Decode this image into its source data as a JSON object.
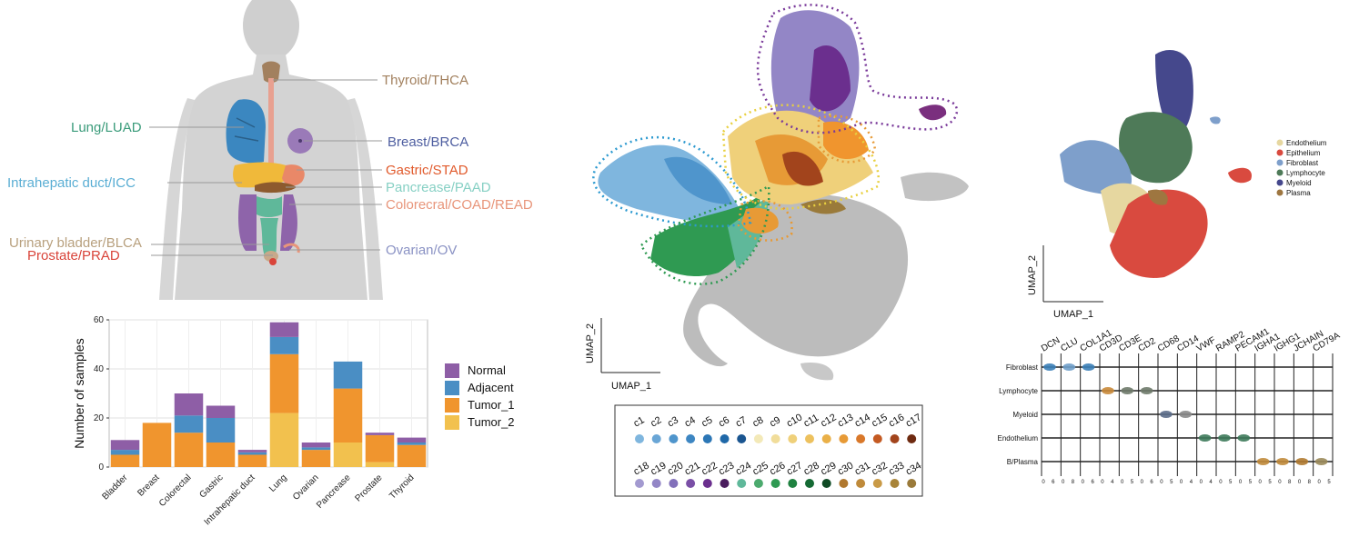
{
  "organ_panel": {
    "labels": [
      {
        "text": "Thyroid/THCA",
        "color": "#a2805e"
      },
      {
        "text": "Lung/LUAD",
        "color": "#3a9b7a"
      },
      {
        "text": "Breast/BRCA",
        "color": "#4e5ea0"
      },
      {
        "text": "Intrahepatic duct/ICC",
        "color": "#5aaed4"
      },
      {
        "text": "Gastric/STAD",
        "color": "#e15a2c"
      },
      {
        "text": "Pancrease/PAAD",
        "color": "#86d0c4"
      },
      {
        "text": "Colorecral/COAD/READ",
        "color": "#e8957a"
      },
      {
        "text": "Urinary bladder/BLCA",
        "color": "#b8a07e"
      },
      {
        "text": "Prostate/PRAD",
        "color": "#d9443a"
      },
      {
        "text": "Ovarian/OV",
        "color": "#8a92c4"
      }
    ]
  },
  "chart_data": [
    {
      "type": "bar",
      "stacked": true,
      "categories": [
        "Bladder",
        "Breast",
        "Colorectal",
        "Gastric",
        "Intrahepatic duct",
        "Lung",
        "Ovarian",
        "Pancrease",
        "Prostate",
        "Thyroid"
      ],
      "series": [
        {
          "name": "Tumor_2",
          "color": "#f2c14e",
          "values": [
            0,
            0,
            0,
            0,
            0,
            22,
            0,
            10,
            2,
            0
          ]
        },
        {
          "name": "Tumor_1",
          "color": "#f0952e",
          "values": [
            5,
            18,
            14,
            10,
            5,
            24,
            7,
            22,
            11,
            9
          ]
        },
        {
          "name": "Adjacent",
          "color": "#4a8ec4",
          "values": [
            2,
            0,
            7,
            10,
            1,
            7,
            1,
            11,
            0,
            1
          ]
        },
        {
          "name": "Normal",
          "color": "#8e5ea6",
          "values": [
            4,
            0,
            9,
            5,
            1,
            6,
            2,
            0,
            1,
            2
          ]
        }
      ],
      "legend_order": [
        "Normal",
        "Adjacent",
        "Tumor_1",
        "Tumor_2"
      ],
      "ylabel": "Number of samples",
      "ylim": [
        0,
        60
      ],
      "yticks": [
        0,
        20,
        40,
        60
      ],
      "grid": true,
      "legend": "right"
    }
  ],
  "umap_main": {
    "xlabel": "UMAP_1",
    "ylabel": "UMAP_2"
  },
  "cluster_legend": {
    "row1": [
      {
        "label": "c1",
        "color": "#7fb6de"
      },
      {
        "label": "c2",
        "color": "#6aa6d6"
      },
      {
        "label": "c3",
        "color": "#4f95cc"
      },
      {
        "label": "c4",
        "color": "#3d86c2"
      },
      {
        "label": "c5",
        "color": "#2c77b6"
      },
      {
        "label": "c6",
        "color": "#1f68a8"
      },
      {
        "label": "c7",
        "color": "#1a5590"
      },
      {
        "label": "c8",
        "color": "#f3e9b8"
      },
      {
        "label": "c9",
        "color": "#f1dd9a"
      },
      {
        "label": "c10",
        "color": "#efd07a"
      },
      {
        "label": "c11",
        "color": "#edc15e"
      },
      {
        "label": "c12",
        "color": "#eab048"
      },
      {
        "label": "c13",
        "color": "#e79a36"
      },
      {
        "label": "c14",
        "color": "#d9782a"
      },
      {
        "label": "c15",
        "color": "#c45a22"
      },
      {
        "label": "c16",
        "color": "#a2441c"
      },
      {
        "label": "c17",
        "color": "#6e2a10"
      }
    ],
    "row2": [
      {
        "label": "c18",
        "color": "#a39ad0"
      },
      {
        "label": "c19",
        "color": "#9386c6"
      },
      {
        "label": "c20",
        "color": "#8270ba"
      },
      {
        "label": "c21",
        "color": "#7a4fa6"
      },
      {
        "label": "c22",
        "color": "#6b2f8e"
      },
      {
        "label": "c23",
        "color": "#4a1d5e"
      },
      {
        "label": "c24",
        "color": "#5fb89a"
      },
      {
        "label": "c25",
        "color": "#4caa6e"
      },
      {
        "label": "c26",
        "color": "#2f9a52"
      },
      {
        "label": "c27",
        "color": "#1f8240"
      },
      {
        "label": "c28",
        "color": "#156a34"
      },
      {
        "label": "c29",
        "color": "#0f4a24"
      },
      {
        "label": "c30",
        "color": "#b0782e"
      },
      {
        "label": "c31",
        "color": "#bf8a3a"
      },
      {
        "label": "c32",
        "color": "#c99a46"
      },
      {
        "label": "c33",
        "color": "#a88438"
      },
      {
        "label": "c34",
        "color": "#9a7a3a"
      }
    ]
  },
  "umap_celltype": {
    "xlabel": "UMAP_1",
    "ylabel": "UMAP_2",
    "legend": [
      {
        "name": "Endothelium",
        "color": "#e6d7a0"
      },
      {
        "name": "Epithelium",
        "color": "#d94a3f"
      },
      {
        "name": "Fibroblast",
        "color": "#7e9fcb"
      },
      {
        "name": "Lymphocyte",
        "color": "#4e7a58"
      },
      {
        "name": "Myeloid",
        "color": "#45488c"
      },
      {
        "name": "Plasma",
        "color": "#9e7640"
      }
    ]
  },
  "violin": {
    "genes": [
      "DCN",
      "CLU",
      "COL1A1",
      "CD3D",
      "CD3E",
      "CD2",
      "CD68",
      "CD14",
      "VWF",
      "RAMP2",
      "PECAM1",
      "IGHA1",
      "IGHG1",
      "JCHAIN",
      "CD79A"
    ],
    "rows": [
      "Fibroblast",
      "Lymphocyte",
      "Myeloid",
      "Endothelium",
      "B/Plasma"
    ],
    "axis_ticks": [
      "0",
      "6",
      "0",
      "8",
      "0",
      "6",
      "0",
      "4",
      "0",
      "5",
      "0",
      "6",
      "0",
      "5",
      "0",
      "4",
      "0",
      "4",
      "0",
      "5",
      "0",
      "5",
      "0",
      "5",
      "0",
      "8",
      "0",
      "8",
      "0",
      "5"
    ]
  }
}
